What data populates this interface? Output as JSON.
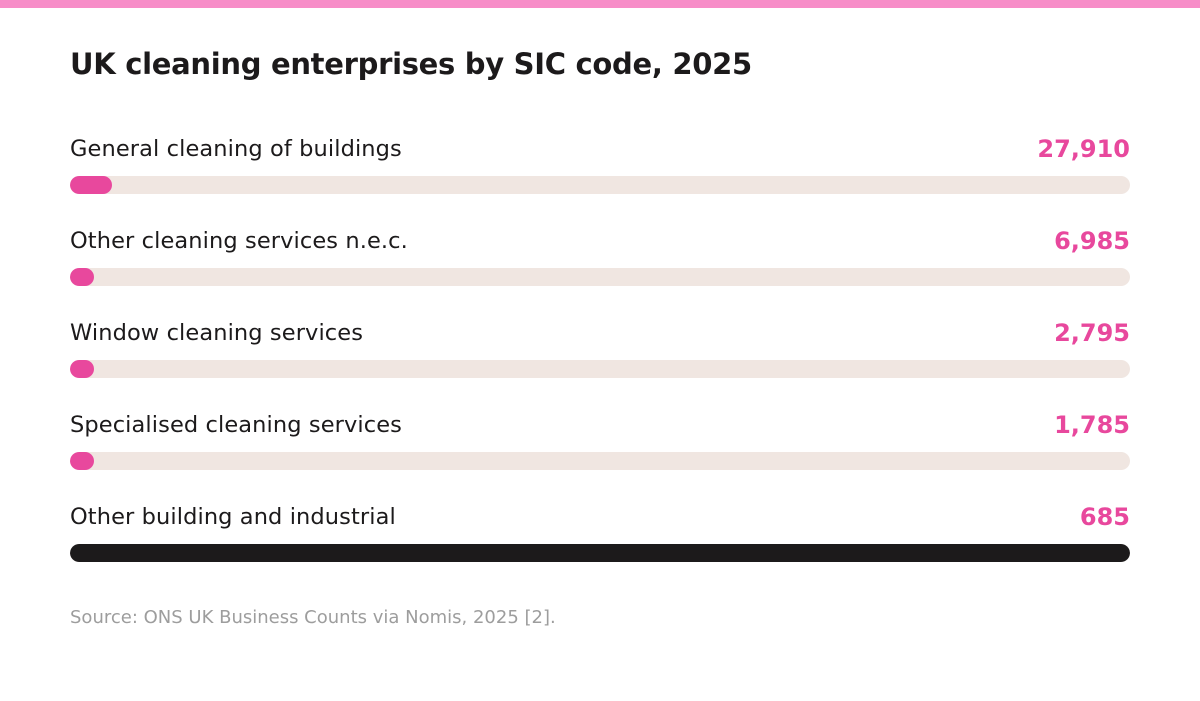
{
  "colors": {
    "top_stripe": "#f78dc8",
    "accent": "#e8489d",
    "track": "#f0e6e1",
    "dark_bar": "#1c1a1b",
    "title_text": "#1c1a1b",
    "source_text": "#9d9d9d"
  },
  "chart_data": {
    "type": "bar",
    "orientation": "horizontal",
    "title": "UK cleaning enterprises by SIC code, 2025",
    "categories": [
      "General cleaning of buildings",
      "Other cleaning services n.e.c.",
      "Window cleaning services",
      "Specialised cleaning services",
      "Other building and industrial"
    ],
    "values": [
      27910,
      6985,
      2795,
      1785,
      685
    ],
    "value_labels": [
      "27,910",
      "6,985",
      "2,795",
      "1,785",
      "685"
    ],
    "bar_fill_fraction": [
      0.04,
      0.02,
      0.02,
      0.02,
      1.0
    ],
    "bar_colors": [
      "#e8489d",
      "#e8489d",
      "#e8489d",
      "#e8489d",
      "#1c1a1b"
    ],
    "grid": false,
    "legend": "none",
    "source": "Source: ONS UK Business Counts via Nomis, 2025 [2]."
  }
}
